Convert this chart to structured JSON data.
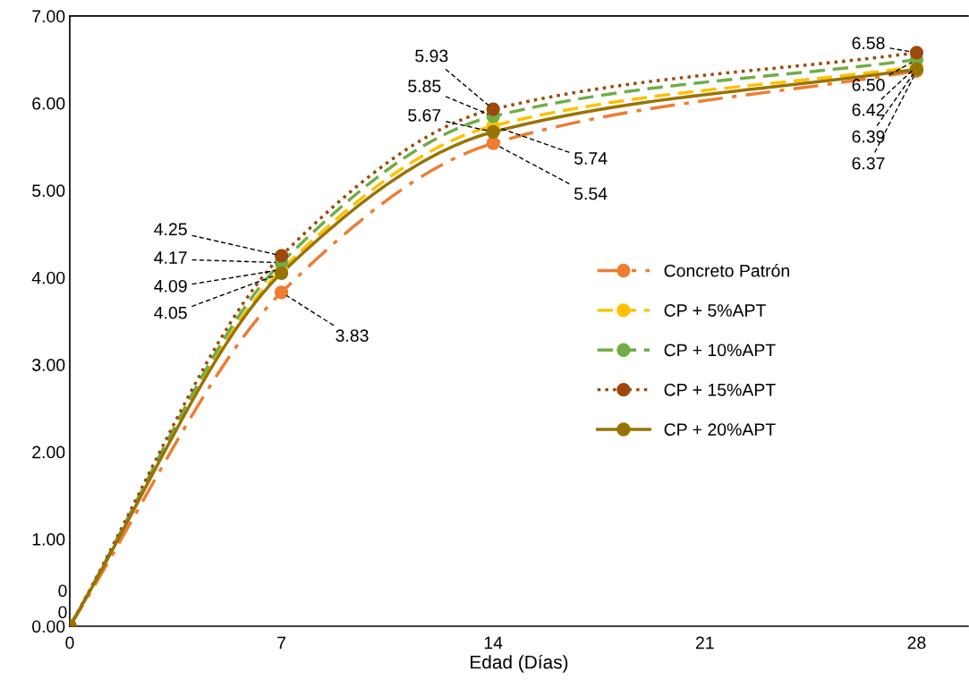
{
  "chart_data": {
    "type": "line",
    "xlabel": "Edad (Días)",
    "x": [
      0,
      7,
      14,
      28
    ],
    "xlim": [
      0,
      29.7
    ],
    "xticks": [
      0,
      7,
      14,
      21,
      28
    ],
    "ylim": [
      0,
      7
    ],
    "yticks": [
      {
        "value": 0,
        "label": "0.00"
      },
      {
        "value": 1,
        "label": "1.00"
      },
      {
        "value": 2,
        "label": "2.00"
      },
      {
        "value": 3,
        "label": "3.00"
      },
      {
        "value": 4,
        "label": "4.00"
      },
      {
        "value": 5,
        "label": "5.00"
      },
      {
        "value": 6,
        "label": "6.00"
      },
      {
        "value": 7,
        "label": "7.00"
      }
    ],
    "grid": false,
    "legend": "right",
    "marker": "circle",
    "series": [
      {
        "name": "Concreto Patrón",
        "color": "#ed7d31",
        "line_style": "dashdot",
        "values": [
          0,
          3.83,
          5.54,
          6.37
        ],
        "value_labels": [
          "0",
          "3.83",
          "5.54",
          "6.37"
        ]
      },
      {
        "name": "CP + 5%APT",
        "color": "#ffc000",
        "line_style": "dashed",
        "values": [
          0,
          4.09,
          5.74,
          6.42
        ],
        "value_labels": [
          null,
          "4.09",
          "5.74",
          "6.42"
        ]
      },
      {
        "name": "CP + 10%APT",
        "color": "#70ad47",
        "line_style": "dashed",
        "values": [
          0,
          4.17,
          5.85,
          6.5
        ],
        "value_labels": [
          null,
          "4.17",
          "5.85",
          "6.50"
        ]
      },
      {
        "name": "CP + 15%APT",
        "color": "#9e480e",
        "line_style": "dotted",
        "values": [
          0,
          4.25,
          5.93,
          6.58
        ],
        "value_labels": [
          null,
          "4.25",
          "5.93",
          "6.58"
        ]
      },
      {
        "name": "CP + 20%APT",
        "color": "#997300",
        "line_style": "solid",
        "values": [
          0,
          4.05,
          5.67,
          6.39
        ],
        "value_labels": [
          "0",
          "4.05",
          "5.67",
          "6.39"
        ]
      }
    ]
  }
}
